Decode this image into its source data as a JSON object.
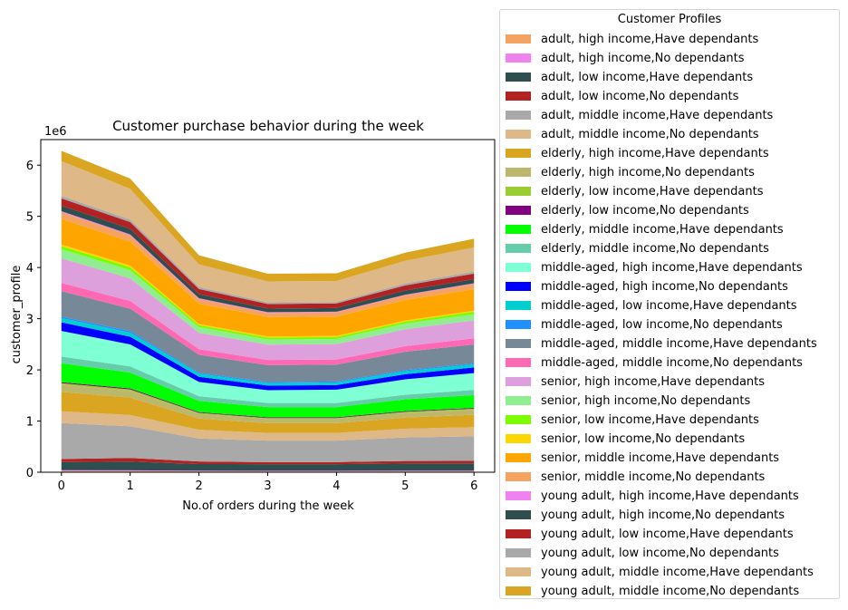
{
  "chart_data": {
    "type": "area",
    "title": "Customer purchase behavior during the week",
    "xlabel": "No.of orders during the week",
    "ylabel": "customer_profile",
    "y_offset_text": "1e6",
    "x": [
      0,
      1,
      2,
      3,
      4,
      5,
      6
    ],
    "xlim": [
      -0.3,
      6.3
    ],
    "ylim": [
      0,
      6500000
    ],
    "x_ticks": [
      0,
      1,
      2,
      3,
      4,
      5,
      6
    ],
    "y_ticks": [
      0,
      1000000,
      2000000,
      3000000,
      4000000,
      5000000,
      6000000
    ],
    "y_tick_labels": [
      "0",
      "1",
      "2",
      "3",
      "4",
      "5",
      "6"
    ],
    "grid": false,
    "legend_placement": "outside-right",
    "legend_title": "Customer Profiles",
    "series": [
      {
        "name": "adult, high income,Have dependants",
        "color": "#f4a460",
        "values": [
          20000,
          19000,
          15000,
          14000,
          14000,
          15000,
          16000
        ]
      },
      {
        "name": "adult, high income,No dependants",
        "color": "#ee82ee",
        "values": [
          20000,
          19000,
          15000,
          14000,
          14000,
          15000,
          16000
        ]
      },
      {
        "name": "adult, low income,Have dependants",
        "color": "#2f4f4f",
        "values": [
          160000,
          170000,
          130000,
          130000,
          130000,
          140000,
          140000
        ]
      },
      {
        "name": "adult, low income,No dependants",
        "color": "#b22222",
        "values": [
          60000,
          70000,
          50000,
          40000,
          40000,
          50000,
          50000
        ]
      },
      {
        "name": "adult, middle income,Have dependants",
        "color": "#a9a9a9",
        "values": [
          700000,
          620000,
          450000,
          420000,
          420000,
          460000,
          480000
        ]
      },
      {
        "name": "adult, middle income,No dependants",
        "color": "#deb887",
        "values": [
          230000,
          220000,
          170000,
          150000,
          150000,
          170000,
          180000
        ]
      },
      {
        "name": "elderly, high income,Have dependants",
        "color": "#daa520",
        "values": [
          380000,
          340000,
          220000,
          190000,
          190000,
          220000,
          240000
        ]
      },
      {
        "name": "elderly, high income,No dependants",
        "color": "#bdb76b",
        "values": [
          140000,
          130000,
          90000,
          80000,
          80000,
          90000,
          100000
        ]
      },
      {
        "name": "elderly, low income,Have dependants",
        "color": "#9acd32",
        "values": [
          30000,
          30000,
          20000,
          20000,
          20000,
          20000,
          20000
        ]
      },
      {
        "name": "elderly, low income,No dependants",
        "color": "#800080",
        "values": [
          20000,
          20000,
          15000,
          15000,
          15000,
          15000,
          15000
        ]
      },
      {
        "name": "elderly, middle income,Have dependants",
        "color": "#00ff00",
        "values": [
          370000,
          310000,
          220000,
          200000,
          200000,
          230000,
          250000
        ]
      },
      {
        "name": "elderly, middle income,No dependants",
        "color": "#66cdaa",
        "values": [
          130000,
          120000,
          90000,
          80000,
          80000,
          90000,
          100000
        ]
      },
      {
        "name": "middle-aged, high income,Have dependants",
        "color": "#7fffd4",
        "values": [
          500000,
          430000,
          280000,
          250000,
          260000,
          300000,
          330000
        ]
      },
      {
        "name": "middle-aged, high income,No dependants",
        "color": "#0000ff",
        "values": [
          170000,
          150000,
          100000,
          90000,
          90000,
          100000,
          110000
        ]
      },
      {
        "name": "middle-aged, low income,Have dependants",
        "color": "#00ced1",
        "values": [
          80000,
          80000,
          60000,
          50000,
          50000,
          60000,
          60000
        ]
      },
      {
        "name": "middle-aged, low income,No dependants",
        "color": "#1e90ff",
        "values": [
          30000,
          30000,
          20000,
          20000,
          20000,
          20000,
          20000
        ]
      },
      {
        "name": "middle-aged, middle income,Have dependants",
        "color": "#778899",
        "values": [
          500000,
          440000,
          350000,
          330000,
          330000,
          360000,
          370000
        ]
      },
      {
        "name": "middle-aged, middle income,No dependants",
        "color": "#ff69b4",
        "values": [
          160000,
          150000,
          110000,
          100000,
          100000,
          110000,
          120000
        ]
      },
      {
        "name": "senior, high income,Have dependants",
        "color": "#dda0dd",
        "values": [
          480000,
          440000,
          320000,
          300000,
          300000,
          330000,
          350000
        ]
      },
      {
        "name": "senior, high income,No dependants",
        "color": "#90ee90",
        "values": [
          180000,
          160000,
          110000,
          100000,
          100000,
          110000,
          120000
        ]
      },
      {
        "name": "senior, low income,Have dependants",
        "color": "#7cfc00",
        "values": [
          60000,
          60000,
          40000,
          40000,
          40000,
          40000,
          50000
        ]
      },
      {
        "name": "senior, low income,No dependants",
        "color": "#ffd700",
        "values": [
          30000,
          30000,
          20000,
          20000,
          20000,
          20000,
          20000
        ]
      },
      {
        "name": "senior, middle income,Have dependants",
        "color": "#ffa500",
        "values": [
          500000,
          470000,
          400000,
          380000,
          380000,
          400000,
          420000
        ]
      },
      {
        "name": "senior, middle income,No dependants",
        "color": "#f4a460",
        "values": [
          130000,
          120000,
          90000,
          80000,
          80000,
          90000,
          100000
        ]
      },
      {
        "name": "young adult, high income,Have dependants",
        "color": "#ee82ee",
        "values": [
          20000,
          20000,
          15000,
          15000,
          15000,
          15000,
          15000
        ]
      },
      {
        "name": "young adult, high income,No dependants",
        "color": "#2f4f4f",
        "values": [
          110000,
          110000,
          80000,
          70000,
          70000,
          80000,
          80000
        ]
      },
      {
        "name": "young adult, low income,Have dependants",
        "color": "#b22222",
        "values": [
          140000,
          130000,
          100000,
          90000,
          90000,
          100000,
          110000
        ]
      },
      {
        "name": "young adult, low income,No dependants",
        "color": "#a9a9a9",
        "values": [
          50000,
          50000,
          40000,
          30000,
          30000,
          40000,
          40000
        ]
      },
      {
        "name": "young adult, middle income,Have dependants",
        "color": "#deb887",
        "values": [
          680000,
          600000,
          440000,
          410000,
          410000,
          440000,
          470000
        ]
      },
      {
        "name": "young adult, middle income,No dependants",
        "color": "#daa520",
        "values": [
          200000,
          200000,
          180000,
          150000,
          150000,
          160000,
          170000
        ]
      }
    ]
  }
}
